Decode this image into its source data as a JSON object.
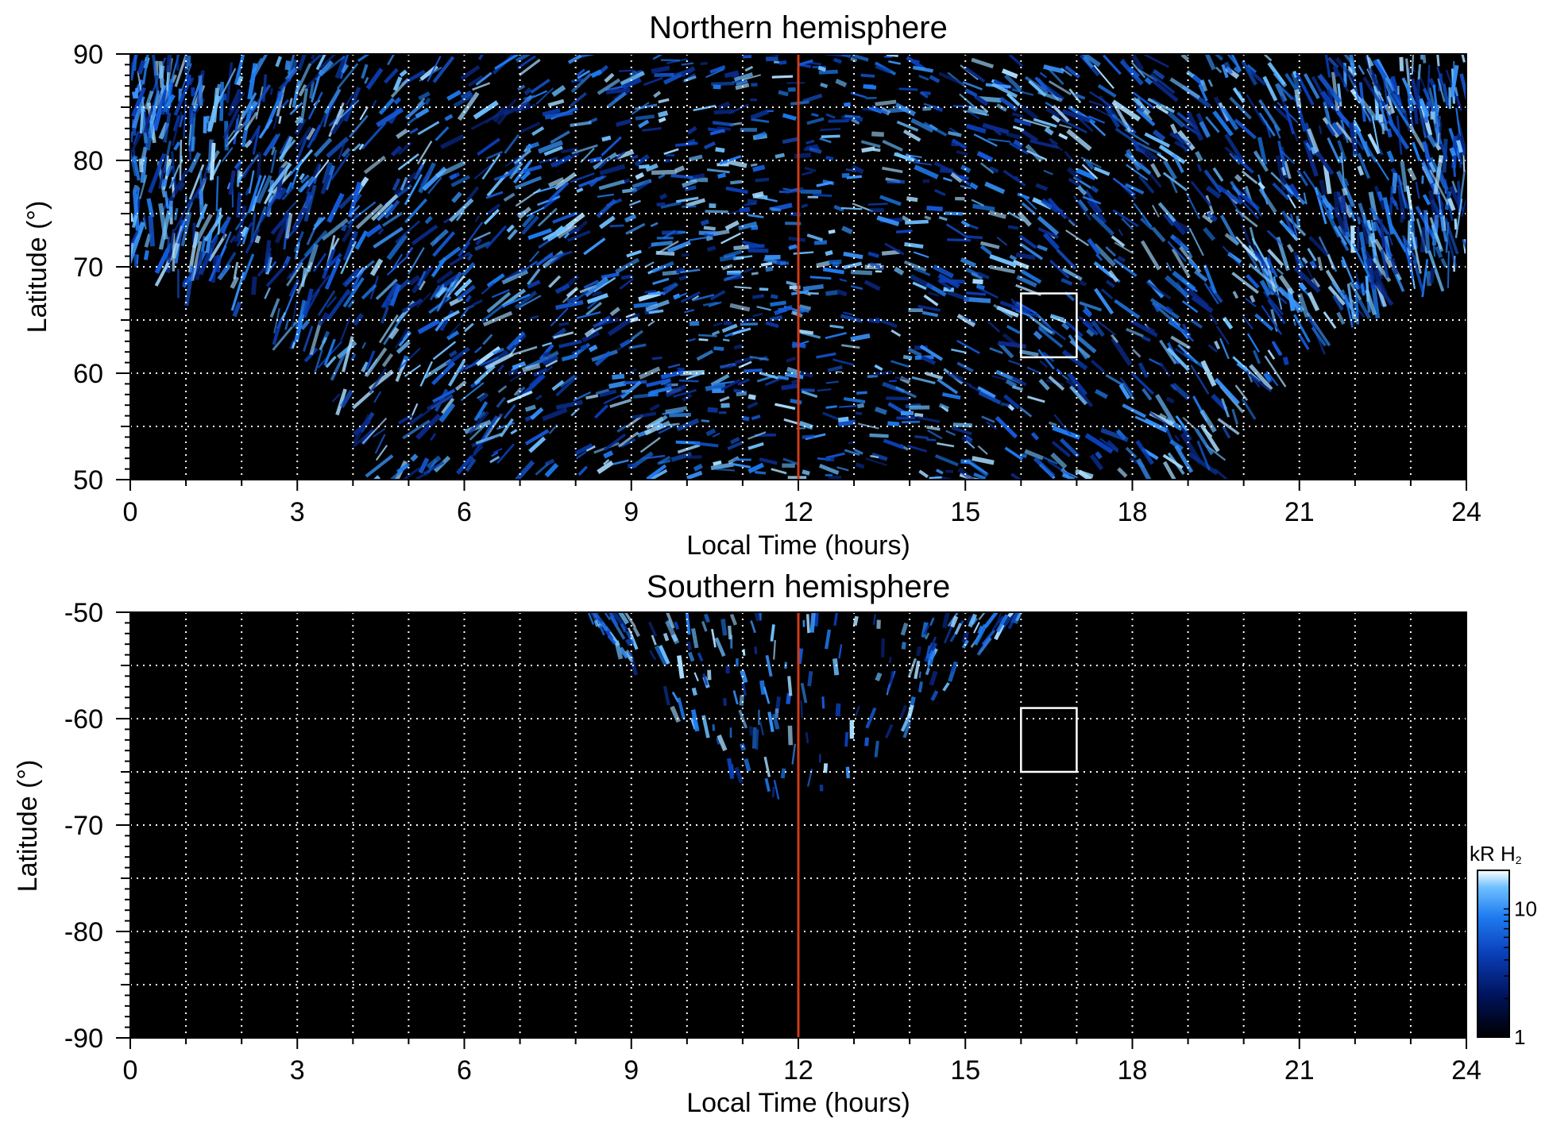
{
  "chart_data": [
    {
      "type": "heatmap",
      "title": "Northern hemisphere",
      "xlabel": "Local Time (hours)",
      "ylabel": "Latitude (°)",
      "xlim": [
        0,
        24
      ],
      "ylim": [
        50,
        90
      ],
      "x_ticks": [
        "0",
        "3",
        "6",
        "9",
        "12",
        "15",
        "18",
        "21",
        "24"
      ],
      "y_ticks": [
        "50",
        "60",
        "70",
        "80",
        "90"
      ],
      "x_tick_values": [
        0,
        3,
        6,
        9,
        12,
        15,
        18,
        21,
        24
      ],
      "y_tick_values": [
        50,
        60,
        70,
        80,
        90
      ],
      "grid": true,
      "reference_line": {
        "x": 12,
        "color": "#d03a16"
      },
      "box": {
        "x": [
          16,
          17
        ],
        "y": [
          61.5,
          67.5
        ]
      },
      "coverage_boundary_lat": [
        [
          0,
          70.5
        ],
        [
          1,
          68
        ],
        [
          2,
          65.5
        ],
        [
          3,
          62
        ],
        [
          4,
          55
        ],
        [
          4.3,
          50
        ],
        [
          19.7,
          50
        ],
        [
          20,
          55
        ],
        [
          21,
          62
        ],
        [
          22,
          65.5
        ],
        [
          23,
          68
        ],
        [
          24,
          70.5
        ]
      ]
    },
    {
      "type": "heatmap",
      "title": "Southern hemisphere",
      "xlabel": "Local Time (hours)",
      "ylabel": "Latitude (°)",
      "xlim": [
        0,
        24
      ],
      "ylim": [
        -90,
        -50
      ],
      "x_ticks": [
        "0",
        "3",
        "6",
        "9",
        "12",
        "15",
        "18",
        "21",
        "24"
      ],
      "y_ticks": [
        "-90",
        "-80",
        "-70",
        "-60",
        "-50"
      ],
      "x_tick_values": [
        0,
        3,
        6,
        9,
        12,
        15,
        18,
        21,
        24
      ],
      "y_tick_values": [
        -90,
        -80,
        -70,
        -60,
        -50
      ],
      "grid": true,
      "reference_line": {
        "x": 12,
        "color": "#d03a16"
      },
      "box": {
        "x": [
          16,
          17
        ],
        "y": [
          -65,
          -59
        ]
      },
      "coverage_boundary_lat": [
        [
          8.2,
          -50
        ],
        [
          9,
          -55
        ],
        [
          10,
          -61
        ],
        [
          11,
          -66
        ],
        [
          11.6,
          -67
        ],
        [
          12,
          -66
        ],
        [
          12.4,
          -67
        ],
        [
          13,
          -66
        ],
        [
          14,
          -61
        ],
        [
          15,
          -55
        ],
        [
          16,
          -50
        ]
      ]
    }
  ],
  "colorbar": {
    "label": "kR H",
    "label_subscript": "2",
    "scale": "log",
    "range": [
      1,
      20
    ],
    "ticks": [
      "1",
      "10"
    ],
    "tick_values": [
      1,
      10
    ],
    "colors": [
      "#000000",
      "#00135c",
      "#0a3fb8",
      "#1e7bf0",
      "#6fc0ff",
      "#ffffff"
    ]
  }
}
